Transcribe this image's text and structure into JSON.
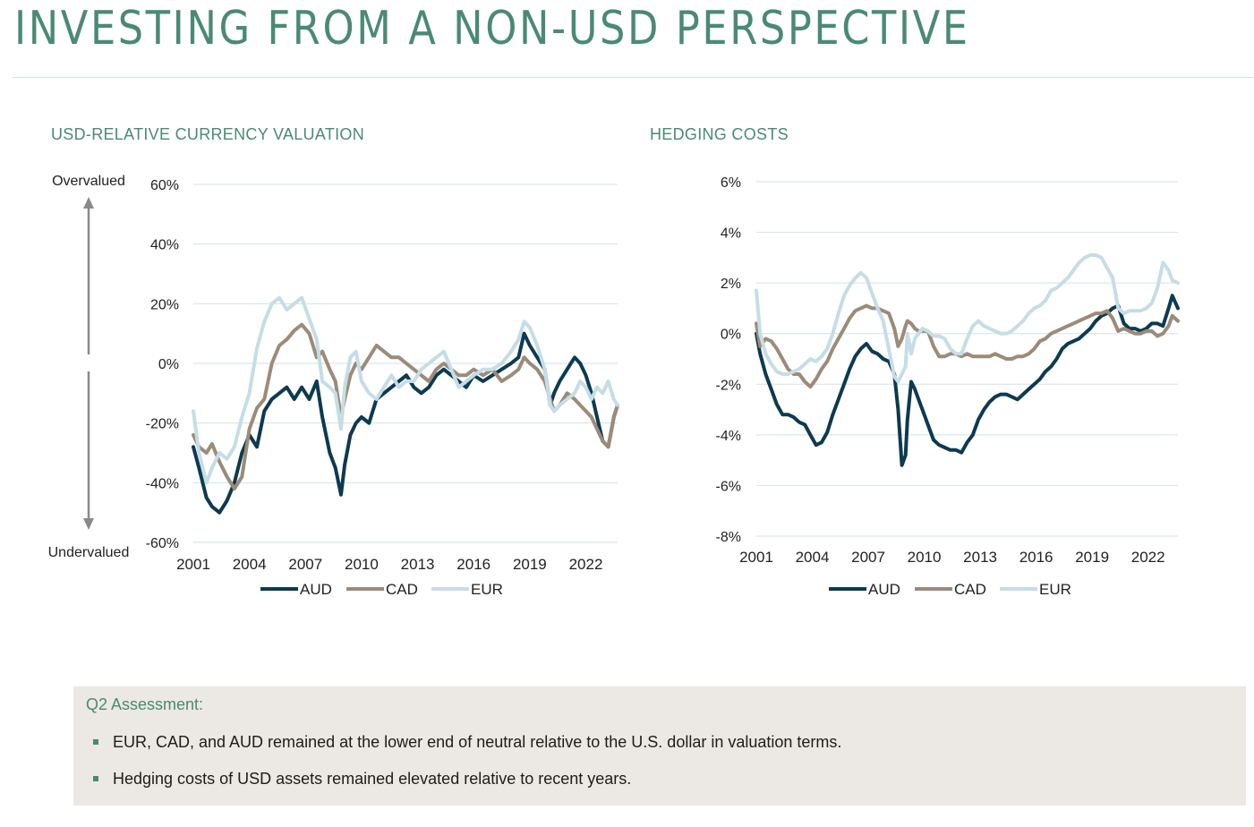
{
  "page": {
    "title": "INVESTING FROM A NON-USD PERSPECTIVE"
  },
  "colors": {
    "accent": "#4a8a74",
    "AUD": "#0c3a52",
    "CAD": "#9c8b78",
    "EUR": "#c5dde6",
    "grid": "#d3e2e6",
    "assessment_bg": "#ece8e3"
  },
  "chart_data": [
    {
      "type": "line",
      "title": "USD-RELATIVE CURRENCY VALUATION",
      "annotations": {
        "top": "Overvalued",
        "bottom": "Undervalued"
      },
      "ylim": [
        -60,
        60
      ],
      "yticks": [
        "60%",
        "40%",
        "20%",
        "0%",
        "-20%",
        "-40%",
        "-60%"
      ],
      "xticks": [
        "2001",
        "2004",
        "2007",
        "2010",
        "2013",
        "2016",
        "2019",
        "2022"
      ],
      "xlim": [
        2001,
        2023.7
      ],
      "legend": "bottom-center",
      "grid": true,
      "series": [
        {
          "name": "AUD",
          "x": [
            2001.0,
            2001.3,
            2001.7,
            2002.0,
            2002.4,
            2002.8,
            2003.2,
            2003.6,
            2004.0,
            2004.4,
            2004.8,
            2005.2,
            2005.6,
            2006.0,
            2006.4,
            2006.8,
            2007.2,
            2007.6,
            2007.9,
            2008.3,
            2008.6,
            2008.9,
            2009.1,
            2009.4,
            2009.7,
            2010.0,
            2010.4,
            2010.8,
            2011.2,
            2011.6,
            2012.0,
            2012.4,
            2012.8,
            2013.2,
            2013.6,
            2014.0,
            2014.4,
            2014.8,
            2015.2,
            2015.6,
            2016.0,
            2016.5,
            2017.0,
            2017.5,
            2018.0,
            2018.4,
            2018.7,
            2019.0,
            2019.4,
            2019.8,
            2020.1,
            2020.3,
            2020.6,
            2021.0,
            2021.4,
            2021.7,
            2022.0,
            2022.3,
            2022.6,
            2022.9,
            2023.2,
            2023.5,
            2023.7
          ],
          "y": [
            -28,
            -35,
            -45,
            -48,
            -50,
            -46,
            -40,
            -30,
            -24,
            -28,
            -16,
            -12,
            -10,
            -8,
            -12,
            -8,
            -12,
            -6,
            -18,
            -30,
            -35,
            -44,
            -34,
            -24,
            -20,
            -18,
            -20,
            -12,
            -10,
            -8,
            -6,
            -4,
            -8,
            -10,
            -8,
            -4,
            -2,
            -4,
            -6,
            -8,
            -4,
            -6,
            -4,
            -2,
            0,
            2,
            10,
            6,
            2,
            -2,
            -14,
            -10,
            -6,
            -2,
            2,
            0,
            -4,
            -10,
            -18,
            -26,
            -28,
            -18,
            -14
          ]
        },
        {
          "name": "CAD",
          "x": [
            2001.0,
            2001.3,
            2001.7,
            2002.0,
            2002.4,
            2002.8,
            2003.2,
            2003.6,
            2004.0,
            2004.4,
            2004.8,
            2005.2,
            2005.6,
            2006.0,
            2006.4,
            2006.8,
            2007.2,
            2007.6,
            2007.9,
            2008.3,
            2008.6,
            2008.9,
            2009.1,
            2009.4,
            2009.7,
            2010.0,
            2010.4,
            2010.8,
            2011.2,
            2011.6,
            2012.0,
            2012.4,
            2012.8,
            2013.2,
            2013.6,
            2014.0,
            2014.4,
            2014.8,
            2015.2,
            2015.6,
            2016.0,
            2016.5,
            2017.0,
            2017.5,
            2018.0,
            2018.4,
            2018.7,
            2019.0,
            2019.4,
            2019.8,
            2020.1,
            2020.3,
            2020.6,
            2021.0,
            2021.4,
            2021.7,
            2022.0,
            2022.3,
            2022.6,
            2022.9,
            2023.2,
            2023.5,
            2023.7
          ],
          "y": [
            -24,
            -28,
            -30,
            -27,
            -33,
            -38,
            -42,
            -38,
            -22,
            -15,
            -12,
            0,
            6,
            8,
            11,
            13,
            10,
            2,
            4,
            -2,
            -6,
            -18,
            -12,
            -4,
            0,
            -2,
            2,
            6,
            4,
            2,
            2,
            0,
            -2,
            -4,
            -6,
            -2,
            0,
            -2,
            -4,
            -4,
            -2,
            -4,
            -2,
            -6,
            -4,
            -2,
            2,
            0,
            -2,
            -6,
            -12,
            -16,
            -14,
            -10,
            -12,
            -14,
            -16,
            -18,
            -22,
            -26,
            -28,
            -18,
            -14
          ]
        },
        {
          "name": "EUR",
          "x": [
            2001.0,
            2001.3,
            2001.7,
            2002.0,
            2002.4,
            2002.8,
            2003.2,
            2003.6,
            2004.0,
            2004.4,
            2004.8,
            2005.2,
            2005.6,
            2006.0,
            2006.4,
            2006.8,
            2007.2,
            2007.6,
            2007.9,
            2008.3,
            2008.6,
            2008.9,
            2009.1,
            2009.4,
            2009.7,
            2010.0,
            2010.4,
            2010.8,
            2011.2,
            2011.6,
            2012.0,
            2012.4,
            2012.8,
            2013.2,
            2013.6,
            2014.0,
            2014.4,
            2014.8,
            2015.2,
            2015.6,
            2016.0,
            2016.5,
            2017.0,
            2017.5,
            2018.0,
            2018.4,
            2018.7,
            2019.0,
            2019.4,
            2019.8,
            2020.1,
            2020.3,
            2020.6,
            2021.0,
            2021.4,
            2021.7,
            2022.0,
            2022.3,
            2022.6,
            2022.9,
            2023.2,
            2023.5,
            2023.7
          ],
          "y": [
            -16,
            -30,
            -40,
            -35,
            -30,
            -32,
            -28,
            -18,
            -10,
            5,
            14,
            20,
            22,
            18,
            20,
            22,
            15,
            8,
            -6,
            -8,
            -10,
            -22,
            -8,
            2,
            4,
            -6,
            -10,
            -12,
            -8,
            -4,
            -8,
            -6,
            -6,
            -2,
            0,
            2,
            4,
            -2,
            -8,
            -6,
            -4,
            -2,
            -2,
            0,
            4,
            8,
            14,
            12,
            6,
            -2,
            -14,
            -16,
            -14,
            -12,
            -10,
            -6,
            -8,
            -12,
            -8,
            -10,
            -6,
            -12,
            -14
          ]
        }
      ]
    },
    {
      "type": "line",
      "title": "HEDGING COSTS",
      "ylim": [
        -8,
        6
      ],
      "yticks": [
        "6%",
        "4%",
        "2%",
        "0%",
        "-2%",
        "-4%",
        "-6%",
        "-8%"
      ],
      "xticks": [
        "2001",
        "2004",
        "2007",
        "2010",
        "2013",
        "2016",
        "2019",
        "2022"
      ],
      "xlim": [
        2001,
        2023.6
      ],
      "legend": "bottom-center",
      "grid": true,
      "series": [
        {
          "name": "AUD",
          "x": [
            2001.0,
            2001.2,
            2001.5,
            2001.8,
            2002.1,
            2002.4,
            2002.7,
            2003.0,
            2003.3,
            2003.6,
            2003.9,
            2004.2,
            2004.5,
            2004.8,
            2005.1,
            2005.4,
            2005.7,
            2006.0,
            2006.3,
            2006.6,
            2006.9,
            2007.2,
            2007.5,
            2007.8,
            2008.1,
            2008.4,
            2008.6,
            2008.8,
            2009.0,
            2009.1,
            2009.3,
            2009.5,
            2009.7,
            2009.9,
            2010.2,
            2010.5,
            2010.8,
            2011.1,
            2011.4,
            2011.7,
            2012.0,
            2012.3,
            2012.6,
            2012.9,
            2013.2,
            2013.5,
            2013.8,
            2014.1,
            2014.4,
            2014.7,
            2015.0,
            2015.3,
            2015.6,
            2015.9,
            2016.2,
            2016.5,
            2016.8,
            2017.1,
            2017.4,
            2017.7,
            2018.0,
            2018.3,
            2018.6,
            2018.9,
            2019.2,
            2019.5,
            2019.8,
            2020.1,
            2020.4,
            2020.7,
            2021.0,
            2021.3,
            2021.6,
            2021.9,
            2022.2,
            2022.5,
            2022.8,
            2023.1,
            2023.3,
            2023.6
          ],
          "y": [
            0.0,
            -0.8,
            -1.6,
            -2.2,
            -2.8,
            -3.2,
            -3.2,
            -3.3,
            -3.5,
            -3.6,
            -4.0,
            -4.4,
            -4.3,
            -3.9,
            -3.2,
            -2.6,
            -2.0,
            -1.4,
            -0.9,
            -0.6,
            -0.4,
            -0.7,
            -0.8,
            -1.0,
            -1.1,
            -1.6,
            -3.0,
            -5.2,
            -4.8,
            -3.4,
            -1.9,
            -2.2,
            -2.6,
            -3.0,
            -3.6,
            -4.2,
            -4.4,
            -4.5,
            -4.6,
            -4.6,
            -4.7,
            -4.3,
            -4.0,
            -3.4,
            -3.0,
            -2.7,
            -2.5,
            -2.4,
            -2.4,
            -2.5,
            -2.6,
            -2.4,
            -2.2,
            -2.0,
            -1.8,
            -1.5,
            -1.3,
            -1.0,
            -0.6,
            -0.4,
            -0.3,
            -0.2,
            0.0,
            0.2,
            0.5,
            0.7,
            0.8,
            1.0,
            1.1,
            0.4,
            0.2,
            0.2,
            0.1,
            0.2,
            0.4,
            0.4,
            0.3,
            1.0,
            1.5,
            1.0
          ]
        },
        {
          "name": "CAD",
          "x": [
            2001.0,
            2001.2,
            2001.5,
            2001.8,
            2002.1,
            2002.4,
            2002.7,
            2003.0,
            2003.3,
            2003.6,
            2003.9,
            2004.2,
            2004.5,
            2004.8,
            2005.1,
            2005.4,
            2005.7,
            2006.0,
            2006.3,
            2006.6,
            2006.9,
            2007.2,
            2007.5,
            2007.8,
            2008.1,
            2008.4,
            2008.6,
            2008.8,
            2009.0,
            2009.1,
            2009.3,
            2009.5,
            2009.7,
            2009.9,
            2010.2,
            2010.5,
            2010.8,
            2011.1,
            2011.4,
            2011.7,
            2012.0,
            2012.3,
            2012.6,
            2012.9,
            2013.2,
            2013.5,
            2013.8,
            2014.1,
            2014.4,
            2014.7,
            2015.0,
            2015.3,
            2015.6,
            2015.9,
            2016.2,
            2016.5,
            2016.8,
            2017.1,
            2017.4,
            2017.7,
            2018.0,
            2018.3,
            2018.6,
            2018.9,
            2019.2,
            2019.5,
            2019.8,
            2020.1,
            2020.4,
            2020.7,
            2021.0,
            2021.3,
            2021.6,
            2021.9,
            2022.2,
            2022.5,
            2022.8,
            2023.1,
            2023.3,
            2023.6
          ],
          "y": [
            0.4,
            -0.5,
            -0.2,
            -0.3,
            -0.6,
            -1.0,
            -1.4,
            -1.6,
            -1.6,
            -1.9,
            -2.1,
            -1.8,
            -1.4,
            -1.1,
            -0.6,
            -0.2,
            0.2,
            0.6,
            0.9,
            1.0,
            1.1,
            1.0,
            1.0,
            0.9,
            0.8,
            0.2,
            -0.5,
            -0.2,
            0.3,
            0.5,
            0.4,
            0.2,
            0.1,
            0.1,
            0.1,
            -0.5,
            -0.9,
            -0.9,
            -0.8,
            -0.8,
            -0.9,
            -0.8,
            -0.9,
            -0.9,
            -0.9,
            -0.9,
            -0.8,
            -0.9,
            -1.0,
            -1.0,
            -0.9,
            -0.9,
            -0.8,
            -0.6,
            -0.3,
            -0.2,
            0.0,
            0.1,
            0.2,
            0.3,
            0.4,
            0.5,
            0.6,
            0.7,
            0.8,
            0.8,
            0.9,
            0.6,
            0.1,
            0.2,
            0.1,
            0.0,
            0.0,
            0.1,
            0.1,
            -0.1,
            0.0,
            0.3,
            0.7,
            0.5
          ]
        },
        {
          "name": "EUR",
          "x": [
            2001.0,
            2001.2,
            2001.5,
            2001.8,
            2002.1,
            2002.4,
            2002.7,
            2003.0,
            2003.3,
            2003.6,
            2003.9,
            2004.2,
            2004.5,
            2004.8,
            2005.1,
            2005.4,
            2005.7,
            2006.0,
            2006.3,
            2006.6,
            2006.9,
            2007.2,
            2007.5,
            2007.8,
            2008.1,
            2008.4,
            2008.6,
            2008.8,
            2009.0,
            2009.1,
            2009.3,
            2009.5,
            2009.7,
            2009.9,
            2010.2,
            2010.5,
            2010.8,
            2011.1,
            2011.4,
            2011.7,
            2012.0,
            2012.3,
            2012.6,
            2012.9,
            2013.2,
            2013.5,
            2013.8,
            2014.1,
            2014.4,
            2014.7,
            2015.0,
            2015.3,
            2015.6,
            2015.9,
            2016.2,
            2016.5,
            2016.8,
            2017.1,
            2017.4,
            2017.7,
            2018.0,
            2018.3,
            2018.6,
            2018.9,
            2019.2,
            2019.5,
            2019.8,
            2020.1,
            2020.4,
            2020.7,
            2021.0,
            2021.3,
            2021.6,
            2021.9,
            2022.2,
            2022.5,
            2022.8,
            2023.1,
            2023.3,
            2023.6
          ],
          "y": [
            1.7,
            0.0,
            -0.8,
            -1.2,
            -1.5,
            -1.6,
            -1.6,
            -1.5,
            -1.4,
            -1.2,
            -1.0,
            -1.1,
            -0.9,
            -0.6,
            0.0,
            0.8,
            1.5,
            1.9,
            2.2,
            2.4,
            2.2,
            1.6,
            1.0,
            0.5,
            -0.6,
            -1.7,
            -1.9,
            -1.6,
            -1.3,
            0.0,
            -0.8,
            -0.2,
            0.0,
            0.2,
            0.1,
            -0.1,
            -0.1,
            -0.2,
            -0.6,
            -0.8,
            -0.8,
            -0.2,
            0.3,
            0.5,
            0.3,
            0.2,
            0.1,
            0.0,
            0.0,
            0.1,
            0.3,
            0.5,
            0.8,
            1.0,
            1.1,
            1.3,
            1.7,
            1.8,
            2.0,
            2.2,
            2.5,
            2.8,
            3.0,
            3.1,
            3.1,
            3.0,
            2.6,
            2.2,
            1.0,
            0.8,
            0.9,
            0.9,
            0.9,
            1.0,
            1.2,
            1.8,
            2.8,
            2.5,
            2.1,
            2.0
          ]
        }
      ]
    }
  ],
  "assessment": {
    "heading": "Q2 Assessment:",
    "bullets": [
      "EUR, CAD, and AUD remained at the lower end of neutral relative to the U.S. dollar in valuation terms.",
      "Hedging costs of USD assets remained elevated relative to recent years."
    ]
  }
}
